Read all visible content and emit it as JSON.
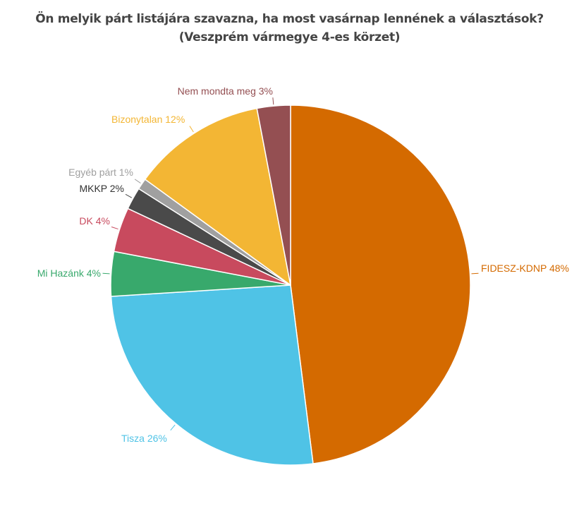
{
  "chart_data": {
    "type": "pie",
    "title": "Ön melyik párt listájára szavazna, ha most vasárnap lennének a választások?",
    "subtitle": "(Veszprém vármegye 4-es körzet)",
    "start": "top",
    "direction": "clockwise",
    "slices": [
      {
        "label": "FIDESZ-KDNP 48%",
        "name": "FIDESZ-KDNP",
        "value": 48,
        "color": "#d46a00"
      },
      {
        "label": "Tisza 26%",
        "name": "Tisza",
        "value": 26,
        "color": "#4fc3e6"
      },
      {
        "label": "Mi Hazánk 4%",
        "name": "Mi Hazánk",
        "value": 4,
        "color": "#38a96c"
      },
      {
        "label": "DK 4%",
        "name": "DK",
        "value": 4,
        "color": "#c84a5e"
      },
      {
        "label": "MKKP 2%",
        "name": "MKKP",
        "value": 2,
        "color": "#4a4a4a"
      },
      {
        "label": "Egyéb párt 1%",
        "name": "Egyéb párt",
        "value": 1,
        "color": "#a0a0a0"
      },
      {
        "label": "Bizonytalan 12%",
        "name": "Bizonytalan",
        "value": 12,
        "color": "#f3b634"
      },
      {
        "label": "Nem mondta meg 3%",
        "name": "Nem mondta meg",
        "value": 3,
        "color": "#944f52"
      }
    ]
  }
}
